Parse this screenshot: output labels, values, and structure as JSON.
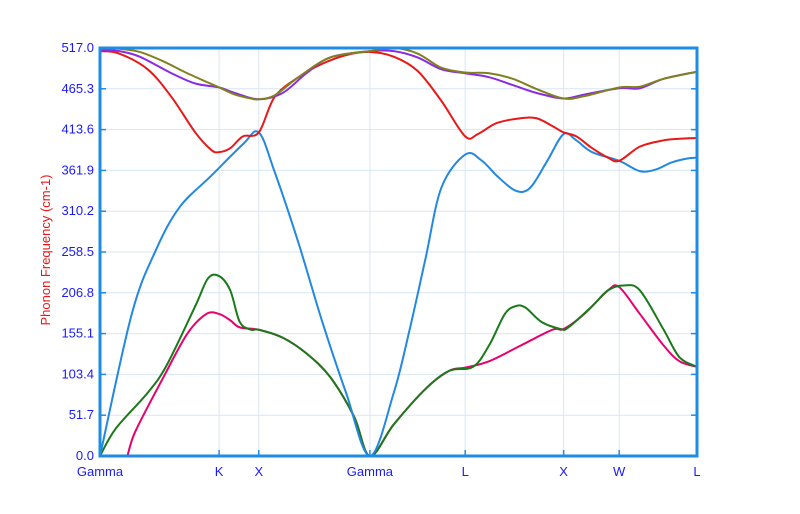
{
  "chart_data": {
    "type": "line",
    "title": "",
    "xlabel": "",
    "ylabel": "Phonon Frequency (cm-1)",
    "ylim": [
      0.0,
      517.0
    ],
    "grid": true,
    "y_ticks": [
      "0.0",
      "51.7",
      "103.4",
      "155.1",
      "206.8",
      "258.5",
      "310.2",
      "361.9",
      "413.6",
      "465.3",
      "517.0"
    ],
    "x_ticks": [
      {
        "label": "Gamma",
        "pos": 0.0
      },
      {
        "label": "K",
        "pos": 0.75
      },
      {
        "label": "X",
        "pos": 1.0
      },
      {
        "label": "Gamma",
        "pos": 1.7
      },
      {
        "label": "L",
        "pos": 2.3
      },
      {
        "label": "X",
        "pos": 2.92
      },
      {
        "label": "W",
        "pos": 3.27
      },
      {
        "label": "L",
        "pos": 3.76
      }
    ],
    "series": [
      {
        "color": "#e8006e",
        "points": [
          [
            0,
            0
          ],
          [
            0.05,
            -10
          ],
          [
            0.15,
            -10
          ],
          [
            0.22,
            30
          ],
          [
            0.4,
            100
          ],
          [
            0.55,
            155
          ],
          [
            0.67,
            180
          ],
          [
            0.75,
            180
          ],
          [
            0.82,
            172
          ],
          [
            0.88,
            163
          ],
          [
            1.0,
            160
          ],
          [
            1.15,
            150
          ],
          [
            1.3,
            130
          ],
          [
            1.45,
            100
          ],
          [
            1.6,
            50
          ],
          [
            1.7,
            0
          ],
          [
            1.85,
            40
          ],
          [
            2.05,
            85
          ],
          [
            2.2,
            108
          ],
          [
            2.3,
            112
          ],
          [
            2.45,
            120
          ],
          [
            2.65,
            140
          ],
          [
            2.85,
            160
          ],
          [
            2.92,
            161
          ],
          [
            3.05,
            180
          ],
          [
            3.2,
            210
          ],
          [
            3.27,
            214
          ],
          [
            3.4,
            180
          ],
          [
            3.55,
            140
          ],
          [
            3.65,
            120
          ],
          [
            3.76,
            113
          ]
        ]
      },
      {
        "color": "#1a7a1a",
        "points": [
          [
            0,
            0
          ],
          [
            0.1,
            35
          ],
          [
            0.3,
            80
          ],
          [
            0.42,
            115
          ],
          [
            0.6,
            190
          ],
          [
            0.68,
            225
          ],
          [
            0.75,
            228
          ],
          [
            0.82,
            210
          ],
          [
            0.88,
            170
          ],
          [
            0.95,
            160
          ],
          [
            1.0,
            160
          ],
          [
            1.15,
            150
          ],
          [
            1.3,
            130
          ],
          [
            1.45,
            100
          ],
          [
            1.6,
            50
          ],
          [
            1.7,
            0
          ],
          [
            1.85,
            40
          ],
          [
            2.05,
            85
          ],
          [
            2.2,
            108
          ],
          [
            2.35,
            113
          ],
          [
            2.45,
            140
          ],
          [
            2.55,
            180
          ],
          [
            2.62,
            190
          ],
          [
            2.68,
            188
          ],
          [
            2.78,
            170
          ],
          [
            2.9,
            161
          ],
          [
            2.95,
            163
          ],
          [
            3.1,
            190
          ],
          [
            3.2,
            210
          ],
          [
            3.3,
            216
          ],
          [
            3.4,
            210
          ],
          [
            3.55,
            160
          ],
          [
            3.65,
            125
          ],
          [
            3.76,
            113
          ]
        ]
      },
      {
        "color": "#2288e0",
        "points": [
          [
            0,
            0
          ],
          [
            0.2,
            180
          ],
          [
            0.35,
            260
          ],
          [
            0.5,
            315
          ],
          [
            0.7,
            355
          ],
          [
            0.9,
            395
          ],
          [
            1.0,
            410
          ],
          [
            1.1,
            360
          ],
          [
            1.25,
            270
          ],
          [
            1.4,
            170
          ],
          [
            1.55,
            80
          ],
          [
            1.7,
            0
          ],
          [
            1.85,
            80
          ],
          [
            1.95,
            160
          ],
          [
            2.05,
            250
          ],
          [
            2.15,
            340
          ],
          [
            2.3,
            382
          ],
          [
            2.4,
            375
          ],
          [
            2.5,
            355
          ],
          [
            2.6,
            338
          ],
          [
            2.67,
            335
          ],
          [
            2.73,
            345
          ],
          [
            2.82,
            375
          ],
          [
            2.92,
            408
          ],
          [
            3.0,
            400
          ],
          [
            3.1,
            385
          ],
          [
            3.27,
            374
          ],
          [
            3.4,
            361
          ],
          [
            3.5,
            363
          ],
          [
            3.6,
            372
          ],
          [
            3.7,
            377
          ],
          [
            3.76,
            378
          ]
        ]
      },
      {
        "color": "#e81818",
        "points": [
          [
            0,
            513
          ],
          [
            0.12,
            510
          ],
          [
            0.3,
            490
          ],
          [
            0.45,
            455
          ],
          [
            0.6,
            410
          ],
          [
            0.7,
            388
          ],
          [
            0.75,
            385
          ],
          [
            0.82,
            390
          ],
          [
            0.9,
            405
          ],
          [
            1.0,
            410
          ],
          [
            1.1,
            455
          ],
          [
            1.25,
            480
          ],
          [
            1.4,
            497
          ],
          [
            1.55,
            508
          ],
          [
            1.7,
            512
          ],
          [
            1.85,
            506
          ],
          [
            2.0,
            488
          ],
          [
            2.15,
            450
          ],
          [
            2.3,
            405
          ],
          [
            2.38,
            408
          ],
          [
            2.5,
            422
          ],
          [
            2.65,
            428
          ],
          [
            2.75,
            428
          ],
          [
            2.85,
            418
          ],
          [
            2.92,
            410
          ],
          [
            3.0,
            405
          ],
          [
            3.1,
            390
          ],
          [
            3.2,
            378
          ],
          [
            3.27,
            374
          ],
          [
            3.4,
            392
          ],
          [
            3.55,
            400
          ],
          [
            3.65,
            402
          ],
          [
            3.76,
            403
          ]
        ]
      },
      {
        "color": "#8a2be2",
        "points": [
          [
            0,
            515
          ],
          [
            0.12,
            513
          ],
          [
            0.25,
            506
          ],
          [
            0.45,
            485
          ],
          [
            0.6,
            472
          ],
          [
            0.75,
            467
          ],
          [
            0.85,
            460
          ],
          [
            1.0,
            452
          ],
          [
            1.15,
            460
          ],
          [
            1.3,
            485
          ],
          [
            1.45,
            505
          ],
          [
            1.7,
            513
          ],
          [
            1.85,
            513
          ],
          [
            2.0,
            505
          ],
          [
            2.15,
            490
          ],
          [
            2.3,
            485
          ],
          [
            2.45,
            480
          ],
          [
            2.6,
            470
          ],
          [
            2.75,
            460
          ],
          [
            2.92,
            453
          ],
          [
            3.05,
            458
          ],
          [
            3.27,
            466
          ],
          [
            3.4,
            466
          ],
          [
            3.55,
            478
          ],
          [
            3.76,
            487
          ]
        ]
      },
      {
        "color": "#808020",
        "points": [
          [
            0,
            517
          ],
          [
            0.12,
            516
          ],
          [
            0.25,
            512
          ],
          [
            0.4,
            500
          ],
          [
            0.55,
            485
          ],
          [
            0.75,
            467
          ],
          [
            0.85,
            458
          ],
          [
            0.95,
            453
          ],
          [
            1.0,
            452
          ],
          [
            1.1,
            457
          ],
          [
            1.25,
            480
          ],
          [
            1.45,
            505
          ],
          [
            1.7,
            513
          ],
          [
            1.85,
            517
          ],
          [
            2.0,
            510
          ],
          [
            2.15,
            492
          ],
          [
            2.3,
            486
          ],
          [
            2.45,
            485
          ],
          [
            2.6,
            478
          ],
          [
            2.75,
            465
          ],
          [
            2.92,
            453
          ],
          [
            3.05,
            456
          ],
          [
            3.27,
            467
          ],
          [
            3.4,
            468
          ],
          [
            3.55,
            478
          ],
          [
            3.76,
            487
          ]
        ]
      }
    ]
  }
}
